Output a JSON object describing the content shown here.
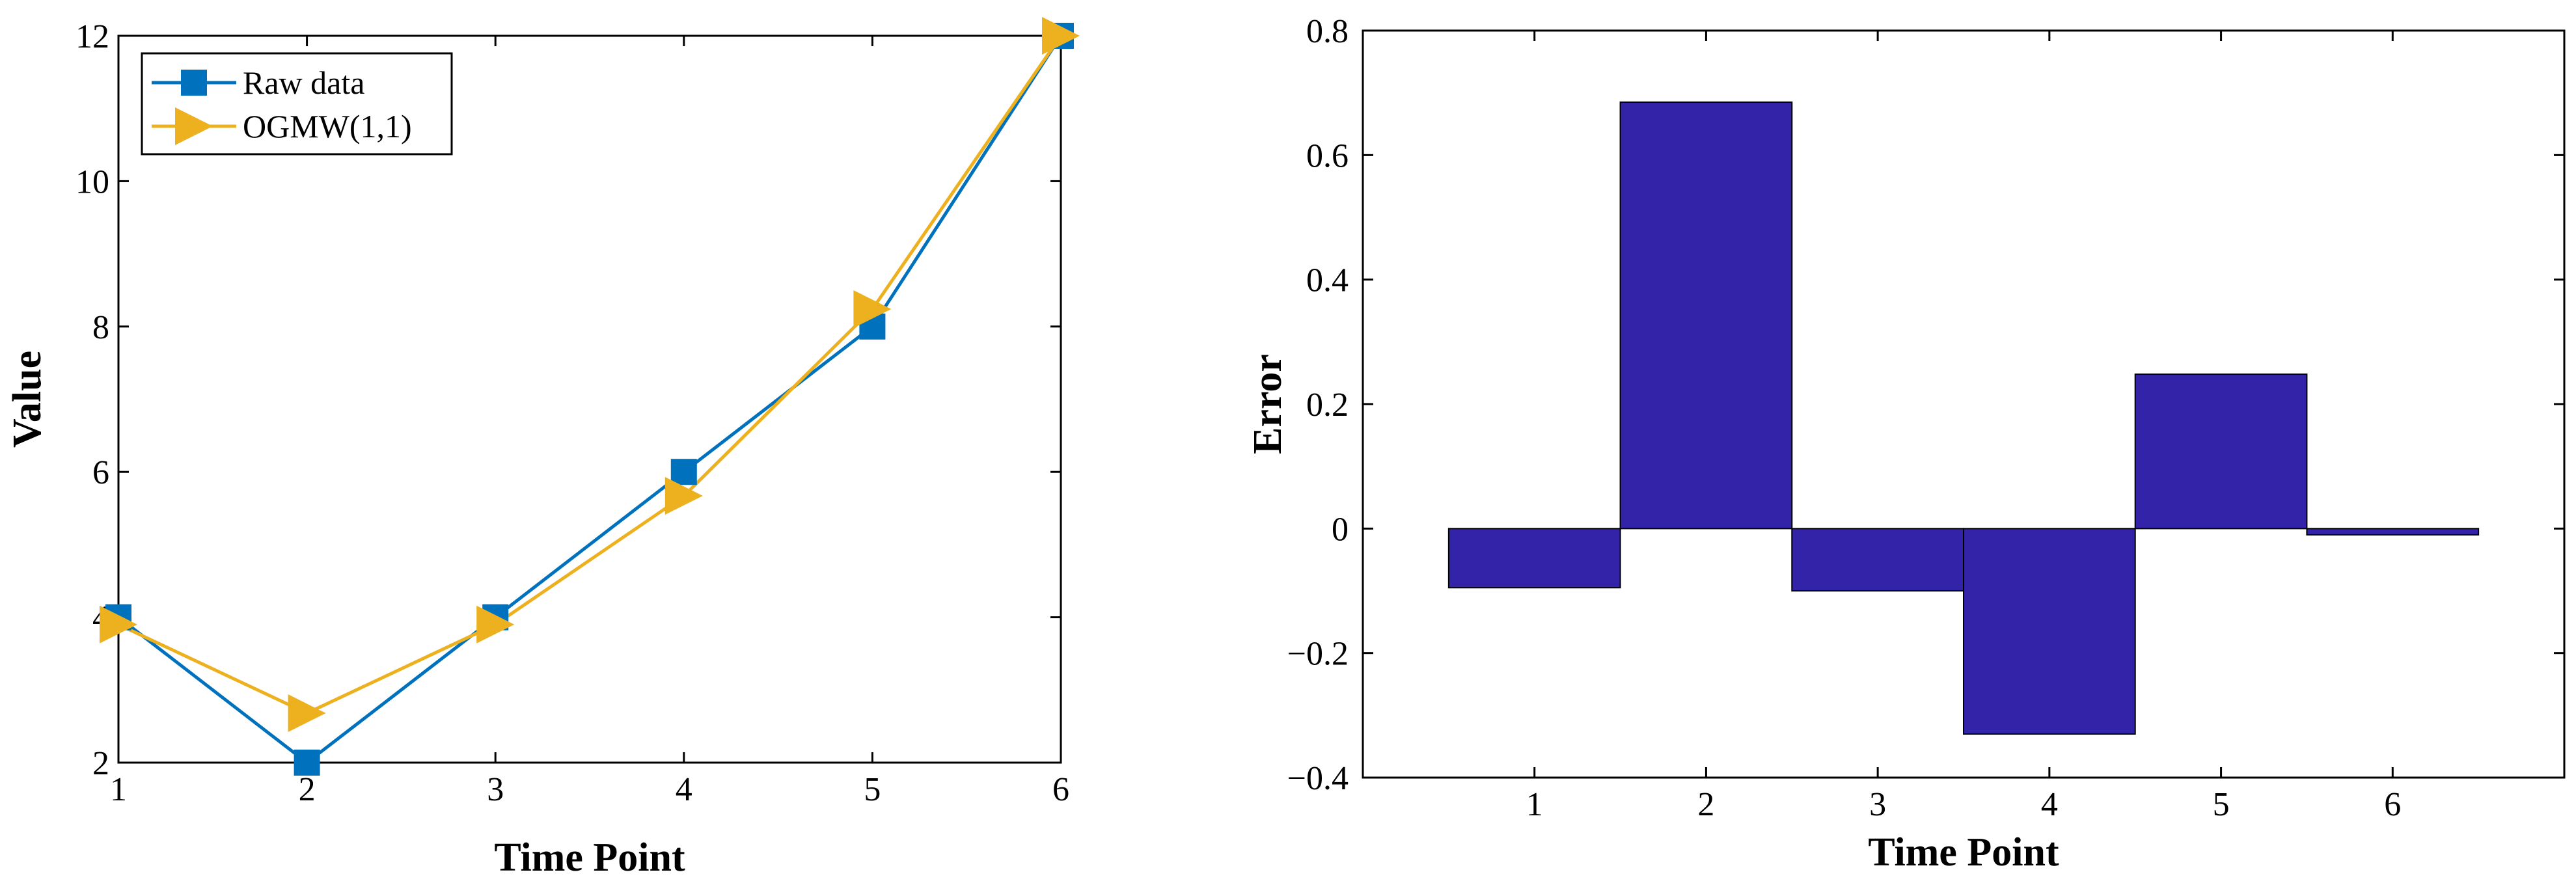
{
  "colors": {
    "raw": "#0072BD",
    "model": "#EDB120",
    "bar_fill": "#3323A8",
    "axis": "#000000"
  },
  "chart_data": [
    {
      "type": "line",
      "x": [
        1,
        2,
        3,
        4,
        5,
        6
      ],
      "xlabel": "Time Point",
      "ylabel": "Value",
      "xlim": [
        1,
        6
      ],
      "ylim": [
        2,
        12
      ],
      "xticks": [
        "1",
        "2",
        "3",
        "4",
        "5",
        "6"
      ],
      "yticks": [
        "2",
        "4",
        "6",
        "8",
        "10",
        "12"
      ],
      "grid": false,
      "legend_position": "top-left",
      "series": [
        {
          "name": "Raw data",
          "marker": "square",
          "color": "#0072BD",
          "values": [
            4,
            2,
            4,
            6,
            8,
            12
          ]
        },
        {
          "name": "OGMW(1,1)",
          "marker": "triangle-right",
          "color": "#EDB120",
          "values": [
            3.9,
            2.68,
            3.9,
            5.67,
            8.24,
            12
          ]
        }
      ]
    },
    {
      "type": "bar",
      "categories": [
        "1",
        "2",
        "3",
        "4",
        "5",
        "6"
      ],
      "values": [
        -0.095,
        0.685,
        -0.1,
        -0.33,
        0.248,
        -0.01
      ],
      "xlabel": "Time Point",
      "ylabel": "Error",
      "xlim": [
        0,
        7
      ],
      "ylim": [
        -0.4,
        0.8
      ],
      "yticks": [
        "−0.4",
        "−0.2",
        "0",
        "0.2",
        "0.4",
        "0.6",
        "0.8"
      ],
      "grid": false
    }
  ]
}
